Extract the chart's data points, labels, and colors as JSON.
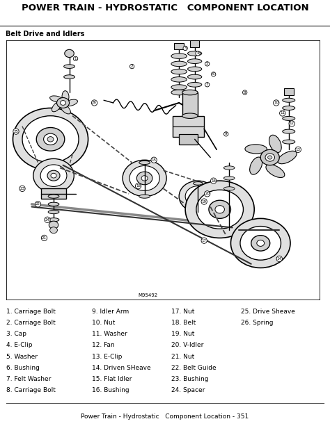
{
  "title": "POWER TRAIN - HYDROSTATIC   COMPONENT LOCATION",
  "subtitle": "Belt Drive and Idlers",
  "figure_label": "M95492",
  "footer": "Power Train - Hydrostatic   Component Location - 351",
  "legend": [
    [
      "1. Carriage Bolt",
      "9. Idler Arm",
      "17. Nut",
      "25. Drive Sheave"
    ],
    [
      "2. Carriage Bolt",
      "10. Nut",
      "18. Belt",
      "26. Spring"
    ],
    [
      "3. Cap",
      "11. Washer",
      "19. Nut",
      ""
    ],
    [
      "4. E-Clip",
      "12. Fan",
      "20. V-Idler",
      ""
    ],
    [
      "5. Washer",
      "13. E-Clip",
      "21. Nut",
      ""
    ],
    [
      "6. Bushing",
      "14. Driven SHeave",
      "22. Belt Guide",
      ""
    ],
    [
      "7. Felt Washer",
      "15. Flat Idler",
      "23. Bushing",
      ""
    ],
    [
      "8. Carriage Bolt",
      "16. Bushing",
      "24. Spacer",
      ""
    ]
  ],
  "bg_color": "#ffffff",
  "text_color": "#000000",
  "title_fontsize": 9.5,
  "subtitle_fontsize": 7,
  "legend_fontsize": 6.5,
  "footer_fontsize": 6.5
}
